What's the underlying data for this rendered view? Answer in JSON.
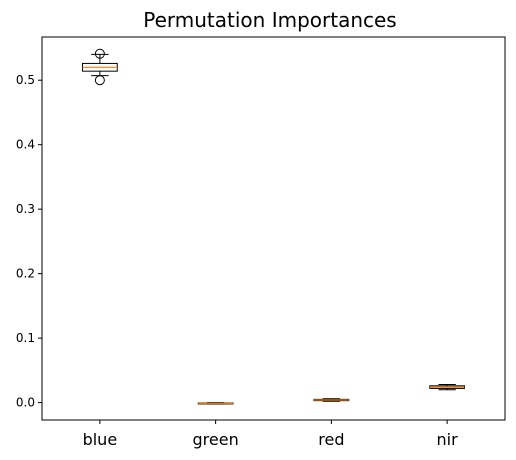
{
  "chart_data": {
    "type": "boxplot",
    "title": "Permutation Importances",
    "xlabel": "",
    "ylabel": "",
    "categories": [
      "blue",
      "green",
      "red",
      "nir"
    ],
    "boxes": [
      {
        "whisker_low": 0.507,
        "q1": 0.514,
        "median": 0.52,
        "q3": 0.526,
        "whisker_high": 0.54,
        "fliers": [
          0.5,
          0.541
        ]
      },
      {
        "whisker_low": -0.002,
        "q1": -0.0015,
        "median": -0.001,
        "q3": -0.0005,
        "whisker_high": 0.0,
        "fliers": []
      },
      {
        "whisker_low": 0.002,
        "q1": 0.003,
        "median": 0.004,
        "q3": 0.005,
        "whisker_high": 0.006,
        "fliers": []
      },
      {
        "whisker_low": 0.02,
        "q1": 0.022,
        "median": 0.024,
        "q3": 0.026,
        "whisker_high": 0.028,
        "fliers": []
      }
    ],
    "yticks": [
      "0.0",
      "0.1",
      "0.2",
      "0.3",
      "0.4",
      "0.5"
    ],
    "ytick_values": [
      0.0,
      0.1,
      0.2,
      0.3,
      0.4,
      0.5
    ],
    "ylim": [
      -0.027,
      0.567
    ],
    "grid": false,
    "colors": {
      "box": "#000000",
      "median": "#ff7f0e",
      "frame": "#000000"
    }
  }
}
